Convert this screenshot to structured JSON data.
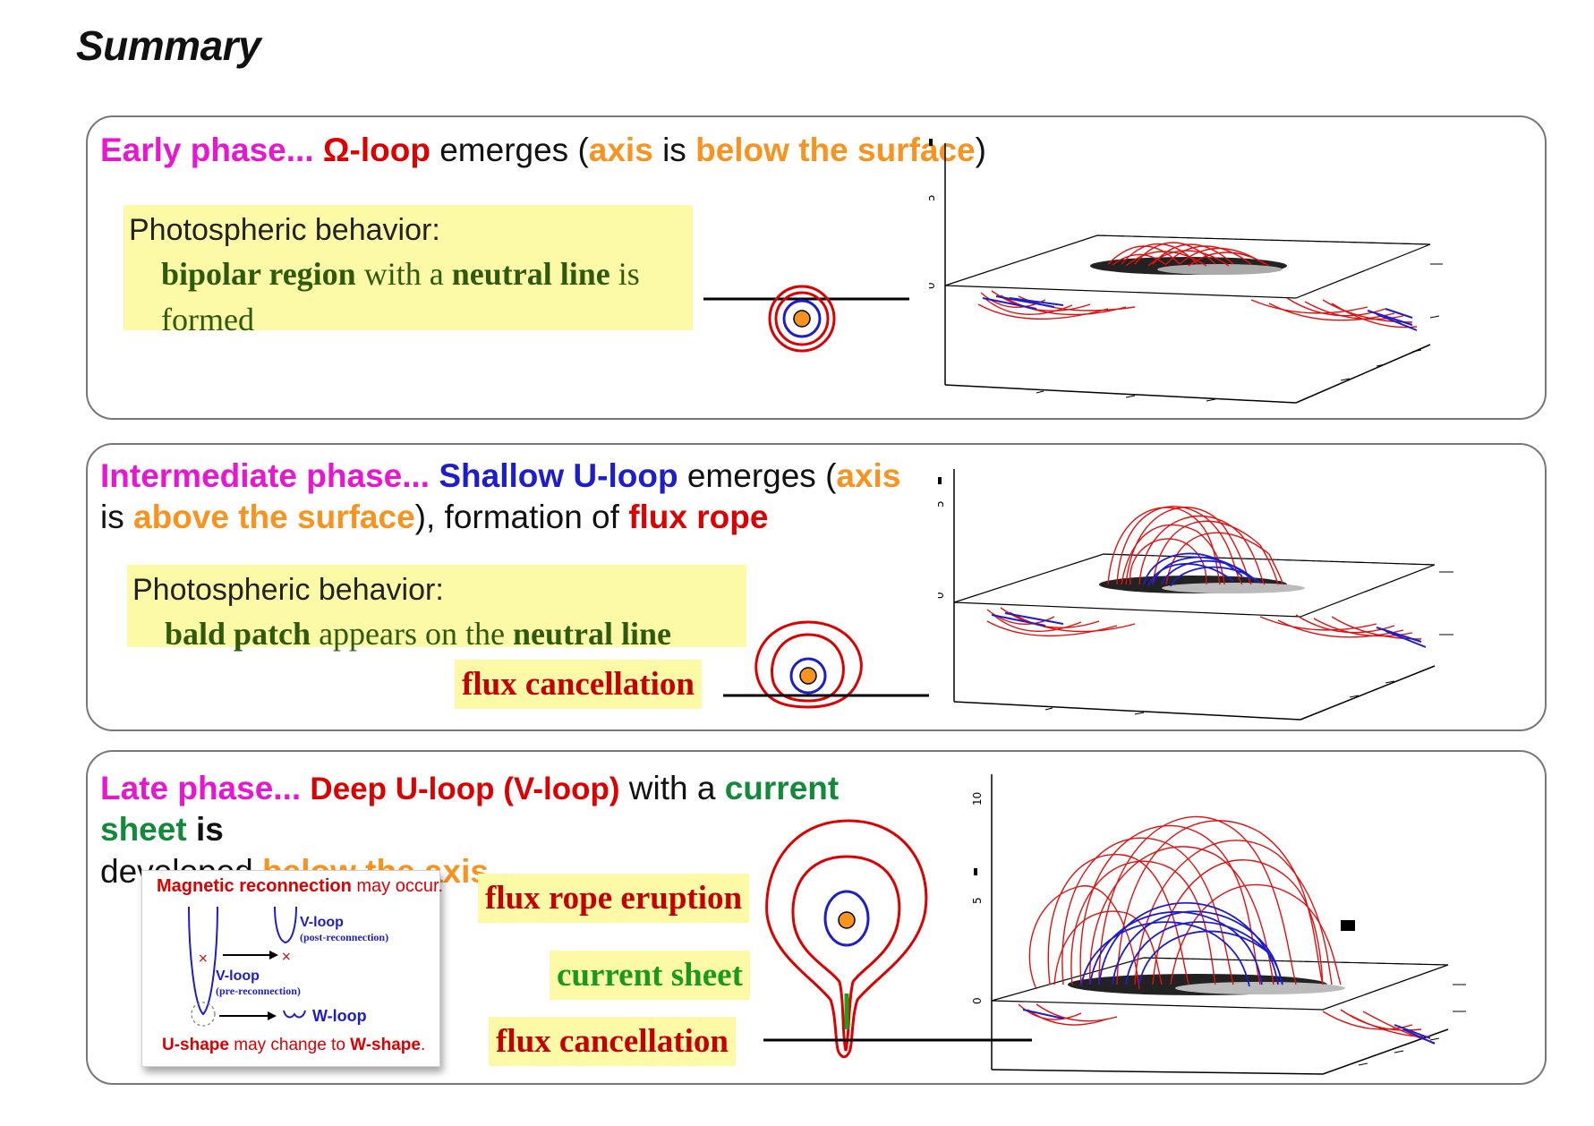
{
  "title": "Summary",
  "colors": {
    "magenta": "#e816d0",
    "red": "#dd0000",
    "orange": "#f7931e",
    "blue": "#1d1dcc",
    "green": "#128a3a",
    "darkgreen": "#2f5a0d",
    "highlight": "#fcfaa7"
  },
  "panels": [
    {
      "phase": "Early phase...",
      "loop": "Ω-loop",
      "t1": "emerges (",
      "axis": "axis",
      "t2": "is",
      "where": "below the surface",
      "t3": ")",
      "photo_label": "Photospheric behavior:",
      "photo_b1": "bipolar region",
      "photo_t1": "with a",
      "photo_b2": "neutral line",
      "photo_t2": "is",
      "photo_t3": "formed",
      "plot_ticks": [
        "5",
        "0"
      ]
    },
    {
      "phase": "Intermediate phase...",
      "loop": "Shallow U-loop",
      "t1": "emerges (",
      "axis": "axis",
      "t2": "is",
      "where": "above the surface",
      "t3": "), formation of",
      "rope": "flux rope",
      "photo_label": "Photospheric behavior:",
      "photo_b1": "bald patch",
      "photo_t1": "appears on the",
      "photo_b2": "neutral line",
      "tag": "flux cancellation",
      "plot_ticks": [
        "5",
        "0"
      ]
    },
    {
      "phase": "Late phase...",
      "loop": "Deep U-loop (V-loop)",
      "t1": "with a",
      "sheet": "current sheet",
      "t2": "is",
      "t3": "developed",
      "where": "below the axis",
      "tag1": "flux rope eruption",
      "tag2": "current sheet",
      "tag3": "flux cancellation",
      "plot_ticks": [
        "10",
        "5",
        "0"
      ],
      "recon": {
        "top_b": "Magnetic reconnection",
        "top_t": "may occur.",
        "v_post": "V-loop",
        "v_post_sub": "(post-reconnection)",
        "v_pre": "V-loop",
        "v_pre_sub": "(pre-reconnection)",
        "w": "W-loop",
        "bot_b1": "U-shape",
        "bot_t1": "may change to",
        "bot_b2": "W-shape",
        "bot_t2": "."
      }
    }
  ]
}
